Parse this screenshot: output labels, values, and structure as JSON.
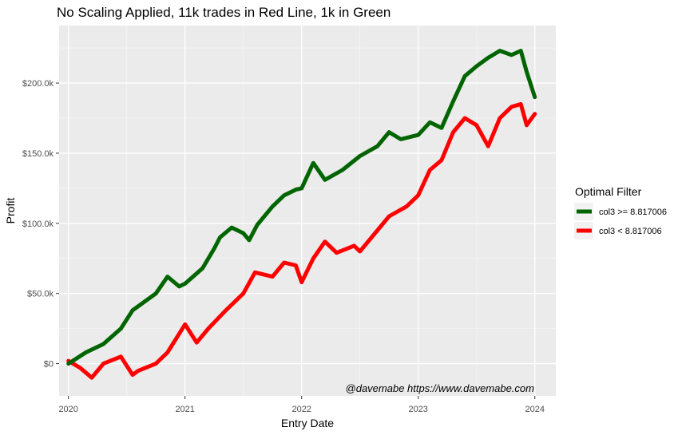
{
  "chart_data": {
    "type": "line",
    "title": "No Scaling Applied, 11k trades in Red Line, 1k in Green",
    "xlabel": "Entry Date",
    "ylabel": "Profit",
    "xlim": [
      2019.92,
      2024.18
    ],
    "ylim": [
      -23000,
      241000
    ],
    "x_ticks": [
      2020,
      2021,
      2022,
      2023,
      2024
    ],
    "x_tick_labels": [
      "2020",
      "2021",
      "2022",
      "2023",
      "2024"
    ],
    "y_ticks": [
      0,
      50000,
      100000,
      150000,
      200000
    ],
    "y_tick_labels": [
      "$0",
      "$50.0k",
      "$100.0k",
      "$150.0k",
      "$200.0k"
    ],
    "grid": true,
    "legend": {
      "title": "Optimal Filter",
      "position": "right"
    },
    "annotation": "@davemabe https://www.davemabe.com",
    "series": [
      {
        "name": "col3 >= 8.817006",
        "color": "#006400",
        "x": [
          2020.0,
          2020.15,
          2020.3,
          2020.45,
          2020.55,
          2020.75,
          2020.85,
          2020.95,
          2021.0,
          2021.15,
          2021.25,
          2021.3,
          2021.4,
          2021.5,
          2021.55,
          2021.62,
          2021.75,
          2021.85,
          2021.95,
          2022.0,
          2022.1,
          2022.2,
          2022.35,
          2022.5,
          2022.65,
          2022.75,
          2022.85,
          2023.0,
          2023.1,
          2023.2,
          2023.3,
          2023.4,
          2023.5,
          2023.6,
          2023.7,
          2023.8,
          2023.88,
          2023.93,
          2024.0
        ],
        "y": [
          0,
          8000,
          14000,
          25000,
          38000,
          50000,
          62000,
          55000,
          57000,
          68000,
          82000,
          90000,
          97000,
          93000,
          88000,
          99000,
          112000,
          120000,
          124000,
          125000,
          143000,
          131000,
          138000,
          148000,
          155000,
          165000,
          160000,
          163000,
          172000,
          168000,
          187000,
          205000,
          212000,
          218000,
          223000,
          220000,
          223000,
          208000,
          190000
        ]
      },
      {
        "name": "col3 < 8.817006",
        "color": "#FF0000",
        "x": [
          2020.0,
          2020.1,
          2020.2,
          2020.3,
          2020.45,
          2020.55,
          2020.6,
          2020.75,
          2020.85,
          2021.0,
          2021.1,
          2021.2,
          2021.35,
          2021.5,
          2021.6,
          2021.75,
          2021.85,
          2021.95,
          2022.0,
          2022.1,
          2022.2,
          2022.3,
          2022.45,
          2022.5,
          2022.65,
          2022.75,
          2022.9,
          2023.0,
          2023.1,
          2023.2,
          2023.3,
          2023.4,
          2023.5,
          2023.6,
          2023.7,
          2023.8,
          2023.88,
          2023.93,
          2024.0
        ],
        "y": [
          2000,
          -3000,
          -10000,
          0,
          5000,
          -8000,
          -5000,
          0,
          8000,
          28000,
          15000,
          25000,
          38000,
          50000,
          65000,
          62000,
          72000,
          70000,
          58000,
          75000,
          87000,
          79000,
          84000,
          80000,
          95000,
          105000,
          112000,
          120000,
          138000,
          145000,
          165000,
          175000,
          170000,
          155000,
          175000,
          183000,
          185000,
          170000,
          178000
        ]
      }
    ]
  }
}
